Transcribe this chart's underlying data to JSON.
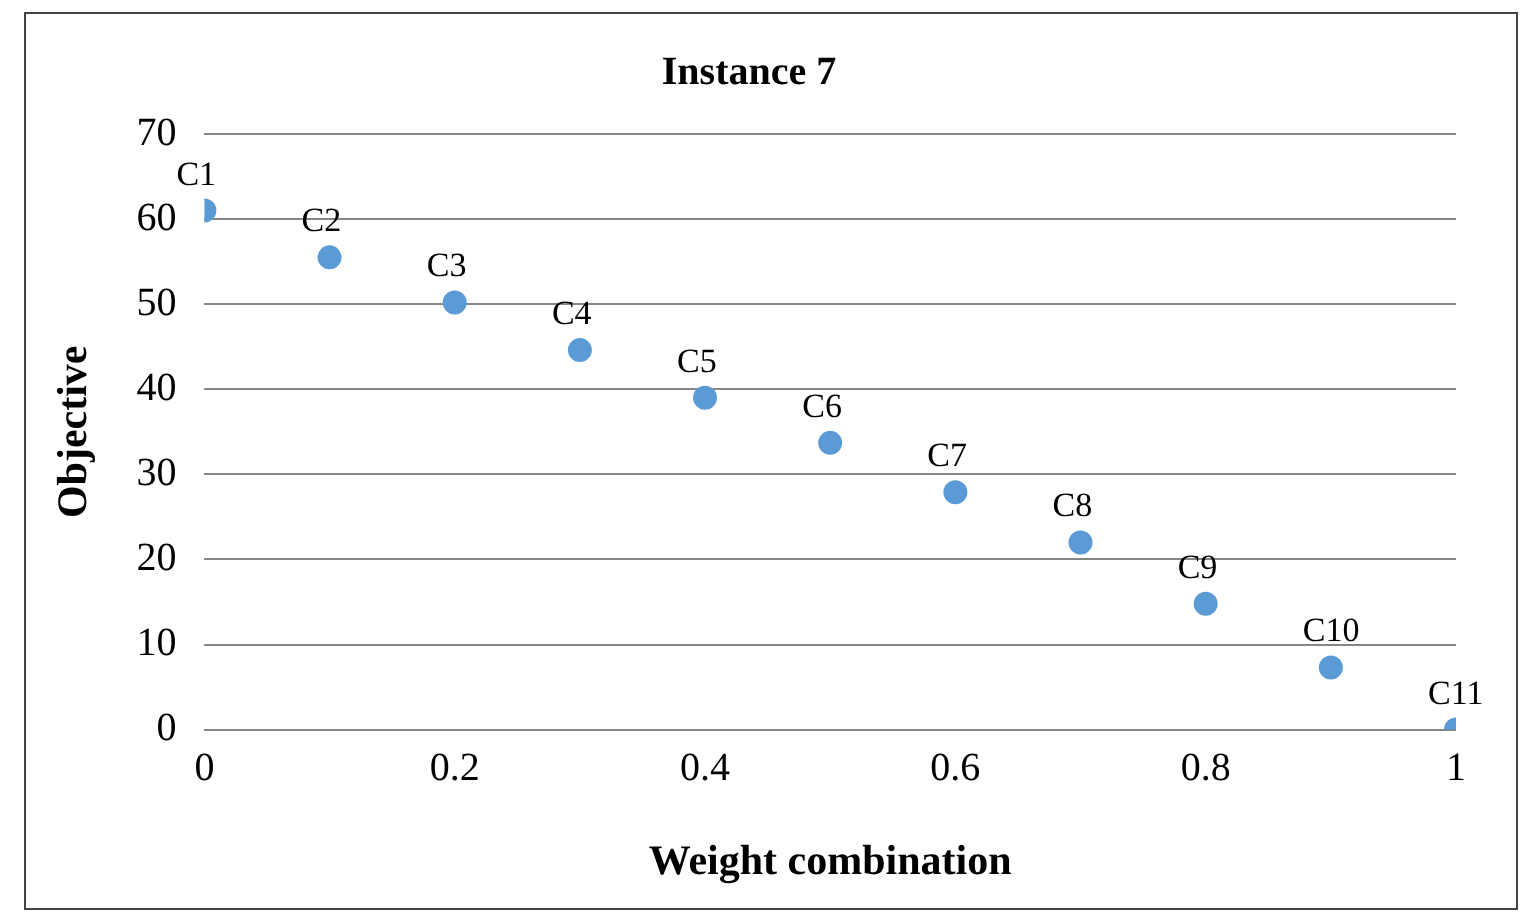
{
  "chart_data": {
    "type": "scatter",
    "title": "Instance 7",
    "xlabel": "Weight combination",
    "ylabel": "Objective",
    "x": [
      0,
      0.1,
      0.2,
      0.3,
      0.4,
      0.5,
      0.6,
      0.7,
      0.8,
      0.9,
      1
    ],
    "series": [
      {
        "color": "#5b9bd5",
        "values": [
          61,
          55.5,
          50.2,
          44.6,
          39,
          33.7,
          27.9,
          22,
          14.8,
          7.3,
          0
        ]
      }
    ],
    "xlim": [
      0,
      1
    ],
    "xticks": [
      0,
      0.2,
      0.4,
      0.6,
      0.8,
      1
    ],
    "ylim": [
      0,
      70
    ],
    "yticks": [
      0,
      10,
      20,
      30,
      40,
      50,
      60,
      70
    ],
    "grid": "y",
    "marker": "circle",
    "legend": false,
    "annotations": [
      {
        "text": "C1",
        "x": 0,
        "y": 61
      },
      {
        "text": "C2",
        "x": 0.1,
        "y": 55.5
      },
      {
        "text": "C3",
        "x": 0.2,
        "y": 50.2
      },
      {
        "text": "C4",
        "x": 0.3,
        "y": 44.6
      },
      {
        "text": "C5",
        "x": 0.4,
        "y": 39
      },
      {
        "text": "C6",
        "x": 0.5,
        "y": 33.7
      },
      {
        "text": "C7",
        "x": 0.6,
        "y": 27.9
      },
      {
        "text": "C8",
        "x": 0.7,
        "y": 22
      },
      {
        "text": "C9",
        "x": 0.8,
        "y": 14.8
      },
      {
        "text": "C10",
        "x": 0.9,
        "y": 7.3
      },
      {
        "text": "C11",
        "x": 1,
        "y": 0
      }
    ]
  }
}
